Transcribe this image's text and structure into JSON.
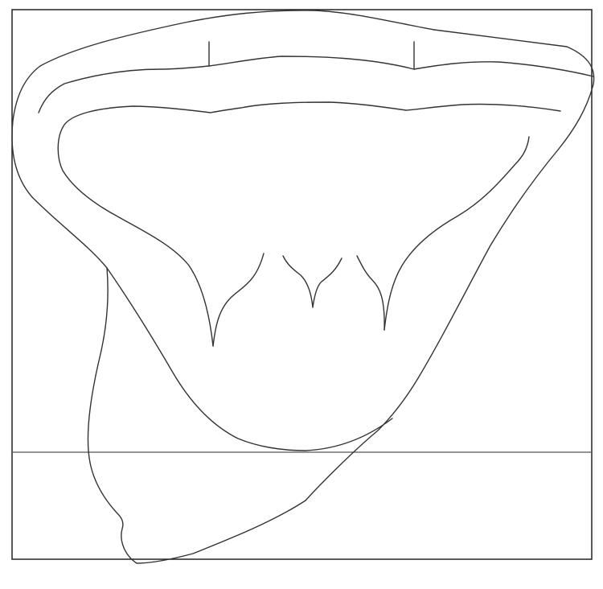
{
  "drawing": {
    "stroke_color": "#333333",
    "frame_color": "#222222",
    "guide_line_color": "#555555",
    "background_color": "#ffffff"
  }
}
